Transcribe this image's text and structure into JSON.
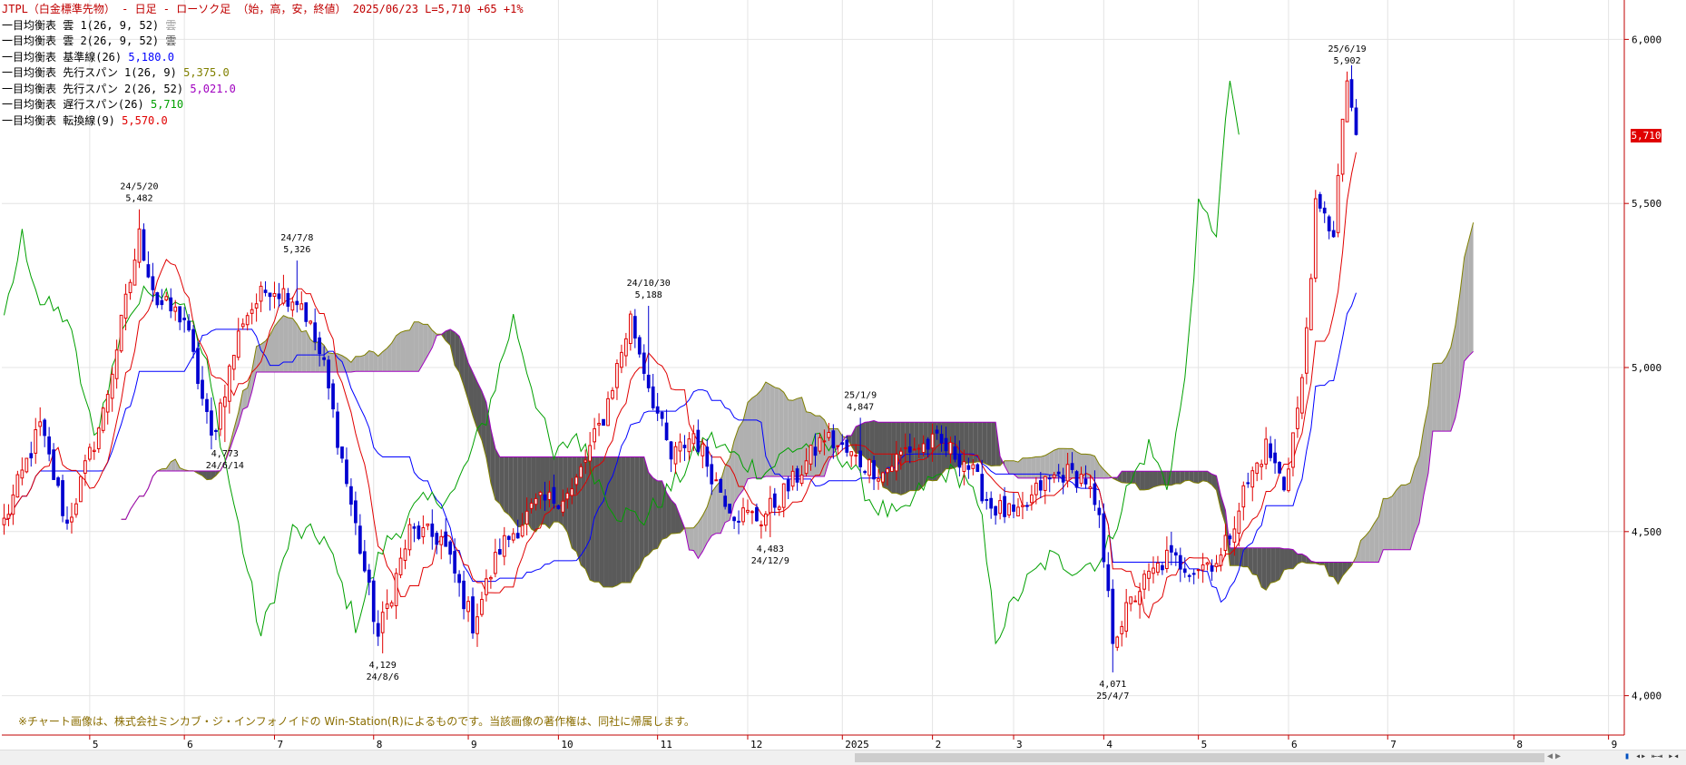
{
  "header": {
    "title": "JTPL（白金標準先物） - 日足 - ローソク足 （始，高，安，終値） 2025/06/23 L=5,710 +65 +1%"
  },
  "legend": [
    {
      "label": "一目均衡表 雲 1(26, 9, 52)",
      "value": "雲",
      "color": "#a0a0a0"
    },
    {
      "label": "一目均衡表 雲 2(26, 9, 52)",
      "value": "雲",
      "color": "#505050"
    },
    {
      "label": "一目均衡表 基準線(26)",
      "value": "5,180.0",
      "color": "#0000ff"
    },
    {
      "label": "一目均衡表 先行スパン 1(26, 9)",
      "value": "5,375.0",
      "color": "#808000"
    },
    {
      "label": "一目均衡表 先行スパン 2(26, 52)",
      "value": "5,021.0",
      "color": "#a000c0"
    },
    {
      "label": "一目均衡表 遅行スパン(26)",
      "value": "5,710",
      "color": "#00a000"
    },
    {
      "label": "一目均衡表 転換線(9)",
      "value": "5,570.0",
      "color": "#e00000"
    }
  ],
  "footnote": "※チャート画像は、株式会社ミンカブ・ジ・インフォノイドの Win-Station(R)によるものです。当該画像の著作権は、同社に帰属します。",
  "last_price_tag": "5,710",
  "colors": {
    "up": "#e00000",
    "down": "#0000d0",
    "kijun": "#0000ff",
    "tenkan": "#e00000",
    "chikou": "#00a000",
    "senkouA": "#808000",
    "senkouB": "#a000c0",
    "cloud_bull": "#b0b0b0",
    "cloud_bear": "#5a5a5a",
    "grid": "#e4e4e4"
  },
  "chart_data": {
    "type": "candlestick",
    "y_axis": {
      "min": 3880,
      "max": 6120,
      "ticks": [
        4000,
        4500,
        5000,
        5500,
        6000
      ],
      "tick_labels": [
        "4,000",
        "4,500",
        "5,000",
        "5,500",
        "6,000"
      ]
    },
    "x_axis": {
      "month_labels": [
        {
          "label": "5",
          "idx": 19
        },
        {
          "label": "6",
          "idx": 40
        },
        {
          "label": "7",
          "idx": 60
        },
        {
          "label": "8",
          "idx": 82
        },
        {
          "label": "9",
          "idx": 103
        },
        {
          "label": "10",
          "idx": 123
        },
        {
          "label": "11",
          "idx": 145
        },
        {
          "label": "12",
          "idx": 165
        },
        {
          "label": "2025",
          "idx": 186
        },
        {
          "label": "2",
          "idx": 206
        },
        {
          "label": "3",
          "idx": 224
        },
        {
          "label": "4",
          "idx": 244
        },
        {
          "label": "5",
          "idx": 265
        },
        {
          "label": "6",
          "idx": 285
        },
        {
          "label": "7",
          "idx": 307
        },
        {
          "label": "8",
          "idx": 335
        },
        {
          "label": "9",
          "idx": 356
        }
      ],
      "total_slots": 360
    },
    "anchors": [
      [
        0,
        4530
      ],
      [
        8,
        4820
      ],
      [
        14,
        4520
      ],
      [
        22,
        4860
      ],
      [
        30,
        5400
      ],
      [
        34,
        5200
      ],
      [
        40,
        5150
      ],
      [
        46,
        4780
      ],
      [
        53,
        5150
      ],
      [
        59,
        5250
      ],
      [
        66,
        5200
      ],
      [
        71,
        5000
      ],
      [
        76,
        4650
      ],
      [
        83,
        4180
      ],
      [
        90,
        4500
      ],
      [
        97,
        4480
      ],
      [
        104,
        4220
      ],
      [
        110,
        4450
      ],
      [
        118,
        4580
      ],
      [
        126,
        4620
      ],
      [
        133,
        4850
      ],
      [
        139,
        5150
      ],
      [
        143,
        4950
      ],
      [
        148,
        4720
      ],
      [
        153,
        4800
      ],
      [
        158,
        4650
      ],
      [
        162,
        4560
      ],
      [
        168,
        4540
      ],
      [
        175,
        4650
      ],
      [
        182,
        4790
      ],
      [
        189,
        4720
      ],
      [
        195,
        4680
      ],
      [
        200,
        4750
      ],
      [
        207,
        4770
      ],
      [
        213,
        4720
      ],
      [
        219,
        4580
      ],
      [
        225,
        4540
      ],
      [
        230,
        4640
      ],
      [
        235,
        4680
      ],
      [
        240,
        4660
      ],
      [
        243,
        4520
      ],
      [
        246,
        4180
      ],
      [
        252,
        4330
      ],
      [
        258,
        4420
      ],
      [
        264,
        4390
      ],
      [
        270,
        4420
      ],
      [
        275,
        4620
      ],
      [
        280,
        4760
      ],
      [
        284,
        4640
      ],
      [
        288,
        4950
      ],
      [
        291,
        5480
      ],
      [
        295,
        5420
      ],
      [
        298,
        5880
      ],
      [
        300,
        5710
      ]
    ],
    "annotations": [
      {
        "date": "24/5/20",
        "value": "5,482",
        "idx": 30,
        "kind": "high"
      },
      {
        "date": "24/6/14",
        "value": "4,773",
        "idx": 49,
        "kind": "low"
      },
      {
        "date": "24/7/8",
        "value": "5,326",
        "idx": 65,
        "kind": "high"
      },
      {
        "date": "24/8/6",
        "value": "4,129",
        "idx": 84,
        "kind": "low"
      },
      {
        "date": "24/10/30",
        "value": "5,188",
        "idx": 143,
        "kind": "high"
      },
      {
        "date": "24/12/9",
        "value": "4,483",
        "idx": 170,
        "kind": "low"
      },
      {
        "date": "25/1/9",
        "value": "4,847",
        "idx": 190,
        "kind": "high"
      },
      {
        "date": "25/4/7",
        "value": "4,071",
        "idx": 246,
        "kind": "low"
      },
      {
        "date": "25/6/19",
        "value": "5,902",
        "idx": 298,
        "kind": "high"
      }
    ]
  }
}
